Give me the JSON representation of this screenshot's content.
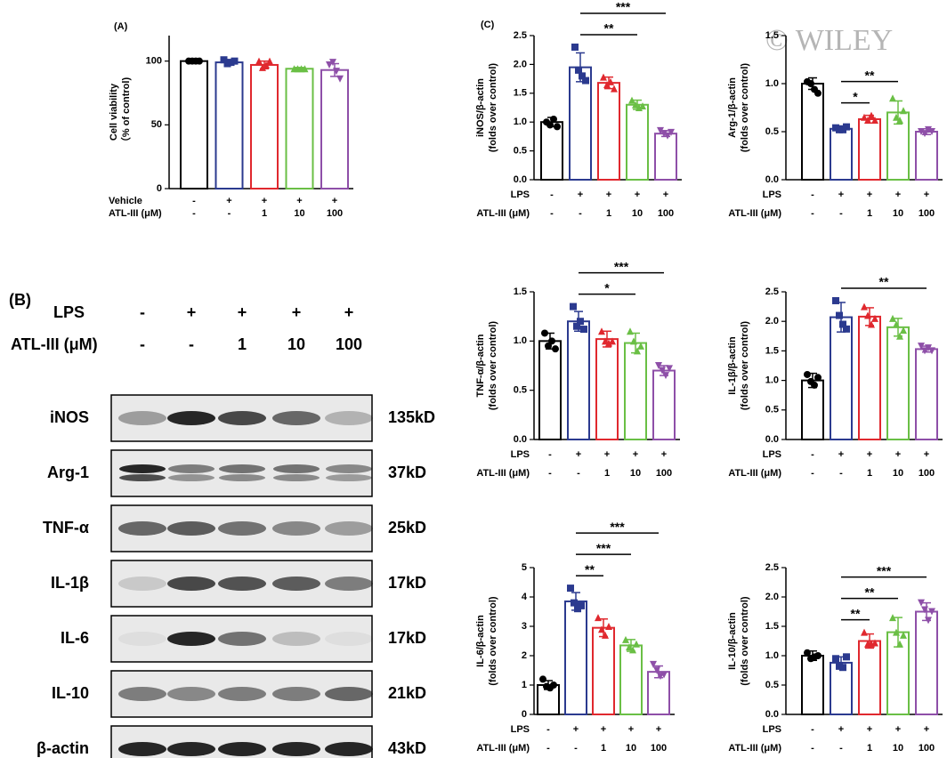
{
  "watermark": "© WILEY",
  "blot": {
    "panel": "(B)",
    "rows": [
      {
        "label": "LPS",
        "values": [
          "-",
          "+",
          "+",
          "+",
          "+"
        ]
      },
      {
        "label": "ATL-III (μM)",
        "values": [
          "-",
          "-",
          "1",
          "10",
          "100"
        ]
      }
    ],
    "proteins": [
      {
        "name": "iNOS",
        "size": "135kD"
      },
      {
        "name": "Arg-1",
        "size": "37kD"
      },
      {
        "name": "TNF-α",
        "size": "25kD"
      },
      {
        "name": "IL-1β",
        "size": "17kD"
      },
      {
        "name": "IL-6",
        "size": "17kD"
      },
      {
        "name": "IL-10",
        "size": "21kD"
      },
      {
        "name": "β-actin",
        "size": "43kD"
      }
    ]
  },
  "chart_data": [
    {
      "type": "bar",
      "panel": "(A)",
      "ylabel": [
        "Cell viability",
        "（% of control)"
      ],
      "rows": [
        {
          "label": "Vehicle",
          "values": [
            "-",
            "+",
            "+",
            "+",
            "+"
          ]
        },
        {
          "label": "ATL-III (μM)",
          "values": [
            "-",
            "-",
            "1",
            "10",
            "100"
          ]
        }
      ],
      "colors": [
        "#000000",
        "#2b3a8f",
        "#e0282e",
        "#6abf45",
        "#8e4fa8"
      ],
      "values": [
        100,
        99,
        97,
        94,
        93
      ],
      "errors": [
        0.5,
        2,
        3,
        1,
        5
      ],
      "points": [
        [
          100,
          100,
          100,
          100
        ],
        [
          101,
          98,
          99,
          100
        ],
        [
          100,
          95,
          97,
          100
        ],
        [
          94,
          94,
          94,
          94
        ],
        [
          97,
          99,
          92,
          86
        ]
      ],
      "ylim": [
        0,
        120
      ],
      "yticks": [
        0,
        50,
        100
      ],
      "brackets": []
    },
    {
      "type": "bar",
      "panel": "(C)",
      "ylabel": [
        "iNOS/β-actin",
        "(folds over control)"
      ],
      "rows": [
        {
          "label": "LPS",
          "values": [
            "-",
            "+",
            "+",
            "+",
            "+"
          ]
        },
        {
          "label": "ATL-III (μM)",
          "values": [
            "-",
            "-",
            "1",
            "10",
            "100"
          ]
        }
      ],
      "colors": [
        "#000000",
        "#2b3a8f",
        "#e0282e",
        "#6abf45",
        "#8e4fa8"
      ],
      "values": [
        1.0,
        1.95,
        1.68,
        1.3,
        0.8
      ],
      "errors": [
        0.08,
        0.25,
        0.1,
        0.08,
        0.05
      ],
      "points": [
        [
          1.0,
          0.95,
          1.05,
          0.92
        ],
        [
          2.3,
          1.9,
          1.8,
          1.72
        ],
        [
          1.78,
          1.65,
          1.7,
          1.58
        ],
        [
          1.38,
          1.3,
          1.25,
          1.28
        ],
        [
          0.85,
          0.8,
          0.76,
          0.82
        ]
      ],
      "ylim": [
        0,
        2.5
      ],
      "yticks": [
        {
          "value": 0,
          "label": "0.0"
        },
        0.5,
        {
          "value": 1,
          "label": "1.0"
        },
        1.5,
        {
          "value": 2,
          "label": "2.0"
        },
        2.5
      ],
      "brackets": [
        {
          "from": 1,
          "to": 3,
          "label": "**"
        },
        {
          "from": 1,
          "to": 4,
          "label": "***"
        }
      ]
    },
    {
      "type": "bar",
      "ylabel": [
        "Arg-1/β-actin",
        "(folds over control)"
      ],
      "rows": [
        {
          "label": "LPS",
          "values": [
            "-",
            "+",
            "+",
            "+",
            "+"
          ]
        },
        {
          "label": "ATL-III (μM)",
          "values": [
            "-",
            "-",
            "1",
            "10",
            "100"
          ]
        }
      ],
      "colors": [
        "#000000",
        "#2b3a8f",
        "#e0282e",
        "#6abf45",
        "#8e4fa8"
      ],
      "values": [
        1.0,
        0.53,
        0.63,
        0.7,
        0.5
      ],
      "errors": [
        0.06,
        0.03,
        0.04,
        0.12,
        0.03
      ],
      "points": [
        [
          1.02,
          1.0,
          0.94,
          0.9
        ],
        [
          0.54,
          0.52,
          0.52,
          0.55
        ],
        [
          0.65,
          0.62,
          0.67,
          0.62
        ],
        [
          0.85,
          0.65,
          0.62,
          0.72
        ],
        [
          0.5,
          0.48,
          0.52,
          0.5
        ]
      ],
      "ylim": [
        0,
        1.5
      ],
      "yticks": [
        {
          "value": 0,
          "label": "0.0"
        },
        0.5,
        {
          "value": 1,
          "label": "1.0"
        },
        1.5
      ],
      "brackets": [
        {
          "from": 1,
          "to": 2,
          "label": "*"
        },
        {
          "from": 1,
          "to": 3,
          "label": "**"
        }
      ]
    },
    {
      "type": "bar",
      "ylabel": [
        "TNF-α/β-actin",
        "(folds over control)"
      ],
      "rows": [
        {
          "label": "LPS",
          "values": [
            "-",
            "+",
            "+",
            "+",
            "+"
          ]
        },
        {
          "label": "ATL-III (μM)",
          "values": [
            "-",
            "-",
            "1",
            "10",
            "100"
          ]
        }
      ],
      "colors": [
        "#000000",
        "#2b3a8f",
        "#e0282e",
        "#6abf45",
        "#8e4fa8"
      ],
      "values": [
        1.0,
        1.2,
        1.02,
        0.98,
        0.7
      ],
      "errors": [
        0.08,
        0.1,
        0.08,
        0.1,
        0.05
      ],
      "points": [
        [
          1.08,
          0.95,
          1.0,
          0.92
        ],
        [
          1.35,
          1.15,
          1.2,
          1.12
        ],
        [
          1.1,
          1.0,
          0.98,
          1.0
        ],
        [
          1.1,
          1.0,
          0.9,
          0.95
        ],
        [
          0.75,
          0.7,
          0.65,
          0.72
        ]
      ],
      "ylim": [
        0,
        1.5
      ],
      "yticks": [
        {
          "value": 0,
          "label": "0.0"
        },
        0.5,
        {
          "value": 1,
          "label": "1.0"
        },
        1.5
      ],
      "brackets": [
        {
          "from": 1,
          "to": 3,
          "label": "*"
        },
        {
          "from": 1,
          "to": 4,
          "label": "***"
        }
      ]
    },
    {
      "type": "bar",
      "ylabel": [
        "IL-1β/β-actin",
        "(folds over control)"
      ],
      "rows": [
        {
          "label": "LPS",
          "values": [
            "-",
            "+",
            "+",
            "+",
            "+"
          ]
        },
        {
          "label": "ATL-III (μM)",
          "values": [
            "-",
            "-",
            "1",
            "10",
            "100"
          ]
        }
      ],
      "colors": [
        "#000000",
        "#2b3a8f",
        "#e0282e",
        "#6abf45",
        "#8e4fa8"
      ],
      "values": [
        1.0,
        2.07,
        2.08,
        1.9,
        1.53
      ],
      "errors": [
        0.12,
        0.25,
        0.15,
        0.15,
        0.05
      ],
      "points": [
        [
          1.1,
          0.98,
          0.92,
          1.05
        ],
        [
          2.35,
          2.1,
          1.95,
          1.87
        ],
        [
          2.25,
          2.1,
          1.95,
          2.05
        ],
        [
          2.05,
          1.95,
          1.75,
          1.85
        ],
        [
          1.58,
          1.5,
          1.55,
          1.5
        ]
      ],
      "ylim": [
        0,
        2.5
      ],
      "yticks": [
        {
          "value": 0,
          "label": "0.0"
        },
        0.5,
        {
          "value": 1,
          "label": "1.0"
        },
        1.5,
        {
          "value": 2,
          "label": "2.0"
        },
        2.5
      ],
      "brackets": [
        {
          "from": 1,
          "to": 4,
          "label": "**"
        }
      ]
    },
    {
      "type": "bar",
      "ylabel": [
        "IL-6/β-actin",
        "(folds over control)"
      ],
      "rows": [
        {
          "label": "LPS",
          "values": [
            "-",
            "+",
            "+",
            "+",
            "+"
          ]
        },
        {
          "label": "ATL-III (μM)",
          "values": [
            "-",
            "-",
            "1",
            "10",
            "100"
          ]
        }
      ],
      "colors": [
        "#000000",
        "#2b3a8f",
        "#e0282e",
        "#6abf45",
        "#8e4fa8"
      ],
      "values": [
        1.0,
        3.85,
        2.95,
        2.35,
        1.45
      ],
      "errors": [
        0.15,
        0.3,
        0.3,
        0.2,
        0.2
      ],
      "points": [
        [
          1.2,
          0.95,
          0.9,
          1.0
        ],
        [
          4.3,
          3.8,
          3.6,
          3.7
        ],
        [
          3.3,
          2.9,
          2.7,
          3.0
        ],
        [
          2.55,
          2.3,
          2.2,
          2.4
        ],
        [
          1.7,
          1.5,
          1.3,
          1.35
        ]
      ],
      "ylim": [
        0,
        5
      ],
      "yticks": [
        0,
        1,
        2,
        3,
        4,
        5
      ],
      "brackets": [
        {
          "from": 1,
          "to": 2,
          "label": "**"
        },
        {
          "from": 1,
          "to": 3,
          "label": "***"
        },
        {
          "from": 1,
          "to": 4,
          "label": "***"
        }
      ]
    },
    {
      "type": "bar",
      "ylabel": [
        "IL-10/β-actin",
        "(folds over control)"
      ],
      "rows": [
        {
          "label": "LPS",
          "values": [
            "-",
            "+",
            "+",
            "+",
            "+"
          ]
        },
        {
          "label": "ATL-III (μM)",
          "values": [
            "-",
            "-",
            "1",
            "10",
            "100"
          ]
        }
      ],
      "colors": [
        "#000000",
        "#2b3a8f",
        "#e0282e",
        "#6abf45",
        "#8e4fa8"
      ],
      "values": [
        1.0,
        0.88,
        1.25,
        1.4,
        1.75
      ],
      "errors": [
        0.08,
        0.1,
        0.12,
        0.25,
        0.15
      ],
      "points": [
        [
          1.05,
          0.95,
          0.98,
          1.0
        ],
        [
          0.95,
          0.82,
          0.8,
          0.98
        ],
        [
          1.4,
          1.2,
          1.2,
          1.22
        ],
        [
          1.65,
          1.4,
          1.2,
          1.35
        ],
        [
          1.9,
          1.78,
          1.6,
          1.75
        ]
      ],
      "ylim": [
        0,
        2.5
      ],
      "yticks": [
        {
          "value": 0,
          "label": "0.0"
        },
        0.5,
        {
          "value": 1,
          "label": "1.0"
        },
        1.5,
        {
          "value": 2,
          "label": "2.0"
        },
        2.5
      ],
      "brackets": [
        {
          "from": 1,
          "to": 2,
          "label": "**"
        },
        {
          "from": 1,
          "to": 3,
          "label": "**"
        },
        {
          "from": 1,
          "to": 4,
          "label": "***"
        }
      ]
    }
  ]
}
